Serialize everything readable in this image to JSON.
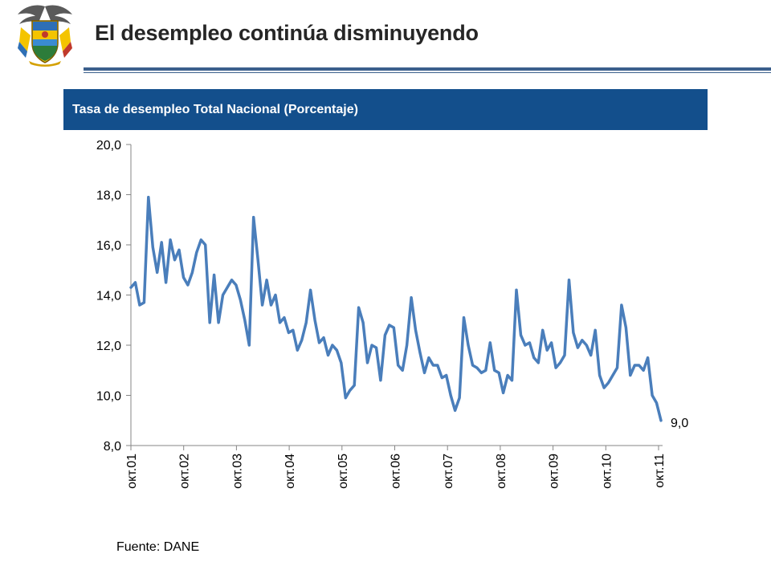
{
  "header": {
    "title": "El desempleo continúa disminuyendo",
    "emblem_icon": "coat-of-arms-icon"
  },
  "banner": {
    "text": "Tasa de desempleo Total Nacional (Porcentaje)"
  },
  "footer": {
    "source": "Fuente: DANE"
  },
  "chart_data": {
    "type": "line",
    "title": "",
    "xlabel": "",
    "ylabel": "",
    "ylim": [
      8.0,
      20.0
    ],
    "y_ticks": [
      "20,0",
      "18,0",
      "16,0",
      "14,0",
      "12,0",
      "10,0",
      "8,0"
    ],
    "x_ticks": [
      "окт.01",
      "окт.02",
      "окт.03",
      "окт.04",
      "окт.05",
      "окт.06",
      "окт.07",
      "окт.08",
      "окт.09",
      "окт.10",
      "окт.11"
    ],
    "grid": false,
    "legend": "none",
    "line_color": "#4a7ebb",
    "end_label": "9,0",
    "series": [
      {
        "values": [
          14.3,
          14.5,
          13.6,
          13.7,
          17.9,
          15.9,
          14.9,
          16.1,
          14.5,
          16.2,
          15.4,
          15.8,
          14.7,
          14.4,
          14.9,
          15.7,
          16.2,
          16.0,
          12.9,
          14.8,
          12.9,
          14.0,
          14.3,
          14.6,
          14.4,
          13.8,
          13.0,
          12.0,
          17.1,
          15.4,
          13.6,
          14.6,
          13.6,
          14.0,
          12.9,
          13.1,
          12.5,
          12.6,
          11.8,
          12.2,
          12.9,
          14.2,
          13.0,
          12.1,
          12.3,
          11.6,
          12.0,
          11.8,
          11.3,
          9.9,
          10.2,
          10.4,
          13.5,
          12.9,
          11.3,
          12.0,
          11.9,
          10.6,
          12.4,
          12.8,
          12.7,
          11.2,
          11.0,
          12.0,
          13.9,
          12.6,
          11.7,
          10.9,
          11.5,
          11.2,
          11.2,
          10.7,
          10.8,
          10.0,
          9.4,
          9.9,
          13.1,
          12.0,
          11.2,
          11.1,
          10.9,
          11.0,
          12.1,
          11.0,
          10.9,
          10.1,
          10.8,
          10.6,
          14.2,
          12.4,
          12.0,
          12.1,
          11.5,
          11.3,
          12.6,
          11.8,
          12.1,
          11.1,
          11.3,
          11.6,
          14.6,
          12.5,
          11.9,
          12.2,
          12.0,
          11.6,
          12.6,
          10.8,
          10.3,
          10.5,
          10.8,
          11.1,
          13.6,
          12.7,
          10.8,
          11.2,
          11.2,
          11.0,
          11.5,
          10.0,
          9.7,
          9.0
        ]
      }
    ]
  }
}
